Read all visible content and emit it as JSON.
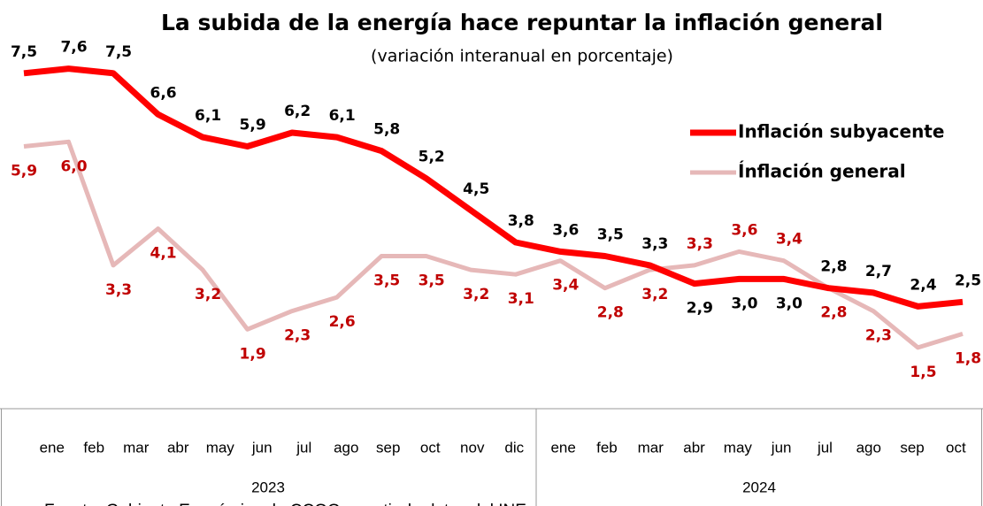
{
  "chart_data": {
    "type": "line",
    "title": "La subida de la energía hace repuntar la inflación general",
    "subtitle": "(variación interanual en porcentaje)",
    "categories": [
      "ene",
      "feb",
      "mar",
      "abr",
      "may",
      "jun",
      "jul",
      "ago",
      "sep",
      "oct",
      "nov",
      "dic",
      "ene",
      "feb",
      "mar",
      "abr",
      "may",
      "jun",
      "jul",
      "ago",
      "sep",
      "oct"
    ],
    "years": [
      "2023",
      "2024"
    ],
    "source": "Fuente: Gabinete Económico de CCOO a partir de datos del INE",
    "legend": "right",
    "series": [
      {
        "name": "Inflación subyacente",
        "color": "#ff0000",
        "label_color": "#000000",
        "values": [
          7.5,
          7.6,
          7.5,
          6.6,
          6.1,
          5.9,
          6.2,
          6.1,
          5.8,
          5.2,
          4.5,
          3.8,
          3.6,
          3.5,
          3.3,
          2.9,
          3.0,
          3.0,
          2.8,
          2.7,
          2.4,
          2.5
        ],
        "value_labels": [
          "7,5",
          "7,6",
          "7,5",
          "6,6",
          "6,1",
          "5,9",
          "6,2",
          "6,1",
          "5,8",
          "5,2",
          "4,5",
          "3,8",
          "3,6",
          "3,5",
          "3,3",
          "2,9",
          "3,0",
          "3,0",
          "2,8",
          "2,7",
          "2,4",
          "2,5"
        ]
      },
      {
        "name": "Ínflación general",
        "color": "#e6b8b8",
        "label_color": "#c00000",
        "values": [
          5.9,
          6.0,
          3.3,
          4.1,
          3.2,
          1.9,
          2.3,
          2.6,
          3.5,
          3.5,
          3.2,
          3.1,
          3.4,
          2.8,
          3.2,
          3.3,
          3.6,
          3.4,
          2.8,
          2.3,
          1.5,
          1.8
        ],
        "value_labels": [
          "5,9",
          "6,0",
          "3,3",
          "4,1",
          "3,2",
          "1,9",
          "2,3",
          "2,6",
          "3,5",
          "3,5",
          "3,2",
          "3,1",
          "3,4",
          "2,8",
          "3,2",
          "3,3",
          "3,6",
          "3,4",
          "2,8",
          "2,3",
          "1,5",
          "1,8"
        ]
      }
    ]
  }
}
